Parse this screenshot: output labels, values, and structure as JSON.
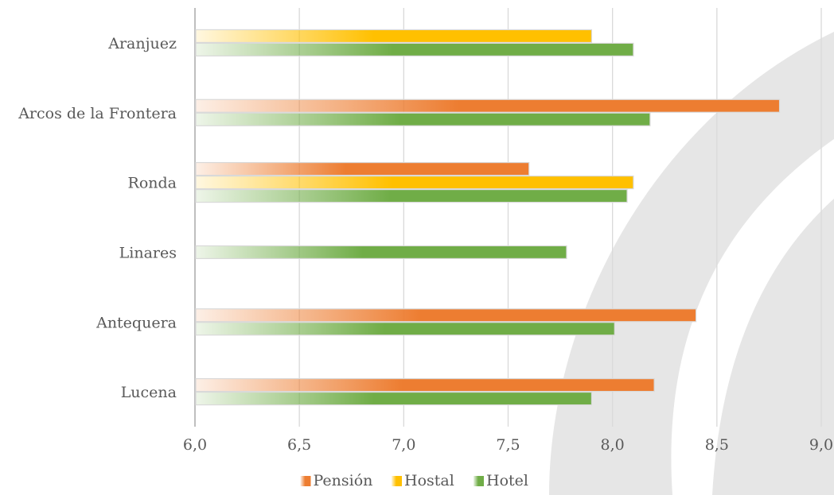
{
  "chart_data": {
    "type": "bar",
    "orientation": "horizontal",
    "categories": [
      "Aranjuez",
      "Arcos de la Frontera",
      "Ronda",
      "Linares",
      "Antequera",
      "Lucena"
    ],
    "series": [
      {
        "name": "Pensión",
        "color": "#ED7D31",
        "values": [
          null,
          8.8,
          7.6,
          null,
          8.4,
          8.2
        ]
      },
      {
        "name": "Hostal",
        "color": "#FFC000",
        "values": [
          7.9,
          null,
          8.1,
          null,
          null,
          null
        ]
      },
      {
        "name": "Hotel",
        "color": "#70AD47",
        "values": [
          8.1,
          8.18,
          8.07,
          7.78,
          8.01,
          7.9
        ]
      }
    ],
    "xlim": [
      6.0,
      9.0
    ],
    "xticks": [
      "6,0",
      "6,5",
      "7,0",
      "7,5",
      "8,0",
      "8,5",
      "9,0"
    ],
    "xtick_values": [
      6.0,
      6.5,
      7.0,
      7.5,
      8.0,
      8.5,
      9.0
    ],
    "grid": "vertical",
    "legend_position": "bottom",
    "title": "",
    "xlabel": "",
    "ylabel": ""
  }
}
